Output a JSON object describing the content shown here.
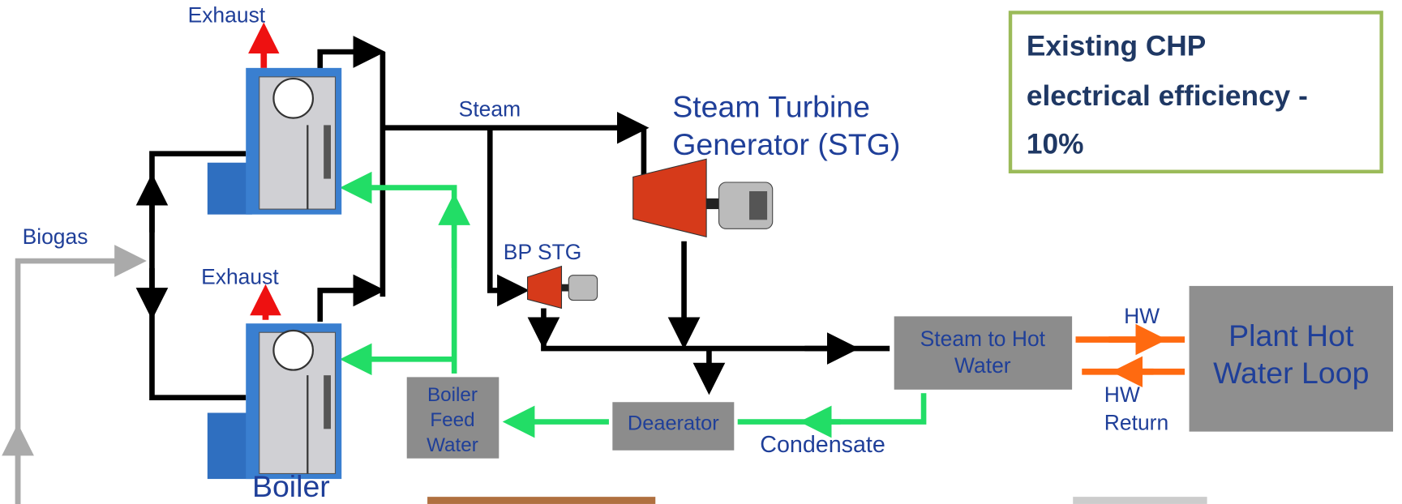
{
  "exhaust_labels": [
    "Exhaust",
    "Exhaust"
  ],
  "flows": {
    "steam": "Steam",
    "biogas": "Biogas",
    "condensate": "Condensate",
    "hw_supply": "HW",
    "hw_return": [
      "HW",
      "Return"
    ]
  },
  "equipment": {
    "boiler": "Boiler",
    "stg": [
      "Steam Turbine",
      "Generator (STG)"
    ],
    "bp_stg": "BP STG",
    "boiler_feed_water": [
      "Boiler",
      "Feed",
      "Water"
    ],
    "deaerator": "Deaerator",
    "steam_to_hot_water": [
      "Steam to Hot",
      "Water"
    ],
    "plant_hot_water_loop": [
      "Plant Hot",
      "Water Loop"
    ]
  },
  "callout": [
    "Existing CHP",
    "electrical efficiency -",
    "10%"
  ]
}
